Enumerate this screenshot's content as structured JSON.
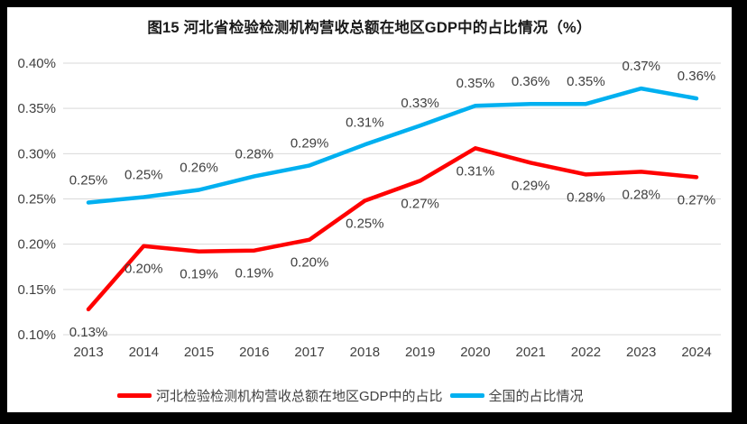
{
  "frame": {
    "border_color": "#000000",
    "background": "#ffffff"
  },
  "chart_data": {
    "type": "line",
    "title": "图15 河北省检验检测机构营收总额在地区GDP中的占比情况（%）",
    "categories": [
      "2013",
      "2014",
      "2015",
      "2016",
      "2017",
      "2018",
      "2019",
      "2020",
      "2021",
      "2022",
      "2023",
      "2024"
    ],
    "series": [
      {
        "name": "河北检验检测机构营收总额在地区GDP中的占比",
        "color": "#ff0000",
        "label_position": "below",
        "labels": [
          "0.13%",
          "0.20%",
          "0.19%",
          "0.19%",
          "0.20%",
          "0.25%",
          "0.27%",
          "0.31%",
          "0.29%",
          "0.28%",
          "0.28%",
          "0.27%"
        ],
        "values": [
          0.128,
          0.198,
          0.192,
          0.193,
          0.205,
          0.248,
          0.27,
          0.306,
          0.29,
          0.277,
          0.28,
          0.274
        ]
      },
      {
        "name": "全国的占比情况",
        "color": "#00b0f0",
        "label_position": "above",
        "labels": [
          "0.25%",
          "0.25%",
          "0.26%",
          "0.28%",
          "0.29%",
          "0.31%",
          "0.33%",
          "0.35%",
          "0.36%",
          "0.35%",
          "0.37%",
          "0.36%"
        ],
        "values": [
          0.246,
          0.252,
          0.26,
          0.275,
          0.287,
          0.31,
          0.331,
          0.353,
          0.355,
          0.355,
          0.372,
          0.361
        ]
      }
    ],
    "ylim": [
      0.1,
      0.4
    ],
    "ytick_step": 0.05,
    "ytick_labels": [
      "0.10%",
      "0.15%",
      "0.20%",
      "0.25%",
      "0.30%",
      "0.35%",
      "0.40%"
    ],
    "grid": true,
    "gridline_color": "#d9d9d9",
    "axis_text_color": "#404040",
    "data_label_color": "#404040",
    "legend_position": "bottom"
  }
}
